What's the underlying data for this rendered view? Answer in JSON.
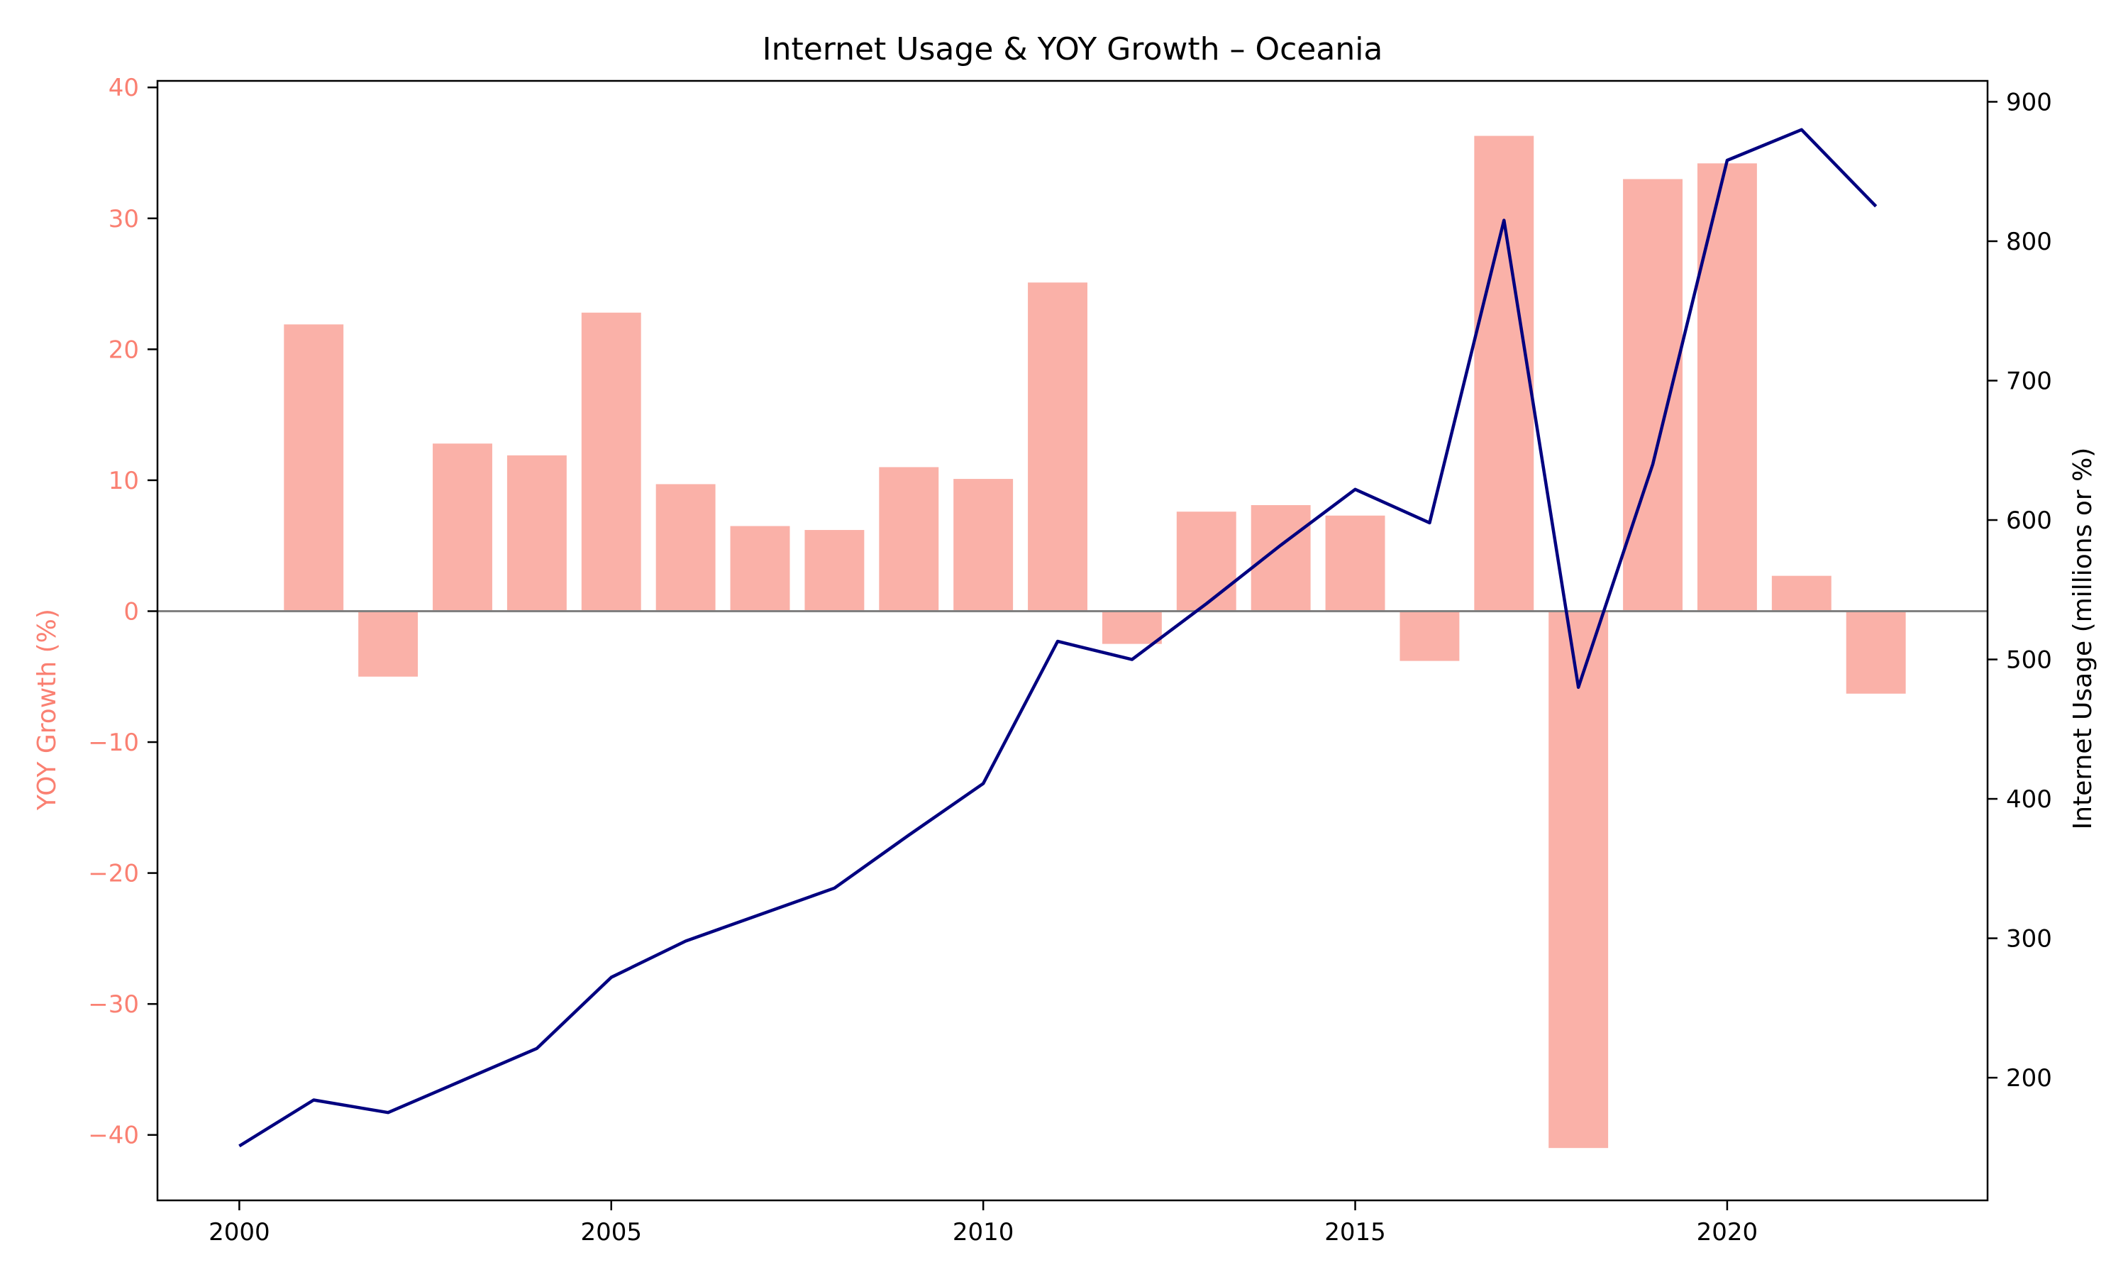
{
  "chart_data": {
    "type": "bar+line",
    "title": "Internet Usage & YOY Growth – Oceania",
    "x": [
      2000,
      2001,
      2002,
      2003,
      2004,
      2005,
      2006,
      2007,
      2008,
      2009,
      2010,
      2011,
      2012,
      2013,
      2014,
      2015,
      2016,
      2017,
      2018,
      2019,
      2020,
      2021,
      2022
    ],
    "xticks": [
      "2000",
      "2005",
      "2010",
      "2015",
      "2020"
    ],
    "xlim": [
      1998.9,
      2023.5
    ],
    "left_axis": {
      "label": "YOY Growth (%)",
      "ylim": [
        -45,
        40.5
      ],
      "ticks": [
        "−40",
        "−30",
        "−20",
        "−10",
        "0",
        "10",
        "20",
        "30",
        "40"
      ],
      "color": "#fa8072"
    },
    "right_axis": {
      "label": "Internet Usage (millions or %)",
      "ylim": [
        112,
        915
      ],
      "ticks": [
        "200",
        "300",
        "400",
        "500",
        "600",
        "700",
        "800",
        "900"
      ],
      "color": "#000000"
    },
    "series": [
      {
        "kind": "bar",
        "axis": "left",
        "color": "#fab1a8",
        "values": [
          null,
          21.9,
          -5.0,
          12.8,
          11.9,
          22.8,
          9.7,
          6.5,
          6.2,
          11.0,
          10.1,
          25.1,
          -2.5,
          7.6,
          8.1,
          7.3,
          -3.8,
          36.3,
          -41.0,
          33.0,
          34.2,
          2.7,
          -6.3
        ]
      },
      {
        "kind": "line",
        "axis": "right",
        "color": "#000080",
        "values": [
          151,
          184,
          175,
          198,
          221,
          272,
          298,
          317,
          336,
          374,
          411,
          513,
          500,
          540,
          582,
          622,
          598,
          815,
          480,
          640,
          858,
          880,
          825
        ]
      }
    ],
    "zero_line": true,
    "grid": false
  }
}
